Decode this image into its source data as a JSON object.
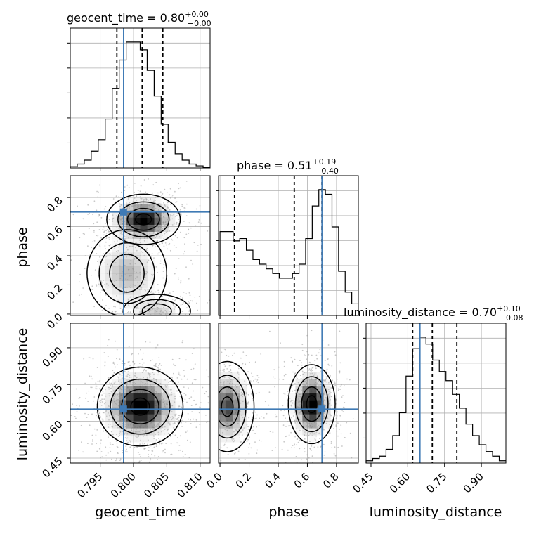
{
  "chart_data": {
    "type": "corner",
    "parameters": [
      "geocent_time",
      "phase",
      "luminosity_distance"
    ],
    "truths": [
      0.7985,
      0.7,
      0.65
    ],
    "truth_color": "#3f7ab5",
    "grid": true,
    "titles": [
      {
        "param": "geocent_time",
        "label": "geocent_time",
        "median": "0.80",
        "plus": "+0.00",
        "minus": "−0.00"
      },
      {
        "param": "phase",
        "label": "phase",
        "median": "0.51",
        "plus": "+0.19",
        "minus": "−0.40"
      },
      {
        "param": "luminosity_distance",
        "label": "luminosity_distance",
        "median": "0.70",
        "plus": "+0.10",
        "minus": "−0.08"
      }
    ],
    "axes": {
      "geocent_time": {
        "range": [
          0.7905,
          0.8115
        ],
        "ticks": [
          0.795,
          0.8,
          0.805,
          0.81
        ],
        "tick_labels": [
          "0.795",
          "0.800",
          "0.805",
          "0.810"
        ]
      },
      "phase": {
        "range": [
          -0.01,
          0.95
        ],
        "ticks": [
          0.0,
          0.2,
          0.4,
          0.6,
          0.8
        ],
        "tick_labels": [
          "0.0",
          "0.2",
          "0.4",
          "0.6",
          "0.8"
        ],
        "y_ticks": [
          0.0,
          0.2,
          0.4,
          0.6,
          0.8
        ],
        "y_tick_labels": [
          "0.0",
          "0.2",
          "0.4",
          "0.6",
          "0.8"
        ]
      },
      "luminosity_distance": {
        "range": [
          0.43,
          1.0
        ],
        "ticks": [
          0.45,
          0.6,
          0.75,
          0.9
        ],
        "tick_labels": [
          "0.45",
          "0.60",
          "0.75",
          "0.90"
        ]
      }
    },
    "histograms": [
      {
        "param": "geocent_time",
        "bin_range": [
          0.7905,
          0.8115
        ],
        "counts": [
          0.5,
          1.5,
          3,
          6.5,
          11,
          19,
          31,
          42,
          49,
          49,
          46,
          38,
          28,
          17,
          10,
          5.5,
          3,
          1.5,
          0.8,
          0.3
        ],
        "quantiles": [
          0.7975,
          0.8013,
          0.8044
        ]
      },
      {
        "param": "phase",
        "bin_range": [
          0.0,
          0.95
        ],
        "counts": [
          36,
          36,
          32,
          33,
          28,
          24,
          22,
          20,
          18,
          16,
          16,
          18,
          22,
          33,
          47,
          54,
          52,
          38,
          19,
          10,
          5
        ],
        "quantiles": [
          0.1,
          0.51,
          0.7
        ]
      },
      {
        "param": "luminosity_distance",
        "bin_range": [
          0.43,
          1.0
        ],
        "counts": [
          1,
          2,
          3,
          6,
          12,
          22,
          38,
          50,
          55,
          52,
          45,
          40,
          36,
          30,
          24,
          17,
          12,
          8,
          5,
          3,
          1
        ],
        "quantiles": [
          0.62,
          0.7,
          0.8
        ]
      }
    ],
    "pairs": [
      {
        "x": "geocent_time",
        "y": "phase",
        "modes": [
          {
            "x": 0.8015,
            "y": 0.65,
            "sx": 0.0024,
            "sy": 0.075,
            "w": 1.0
          },
          {
            "x": 0.799,
            "y": 0.28,
            "sx": 0.0026,
            "sy": 0.13,
            "w": 0.45
          },
          {
            "x": 0.8035,
            "y": 0.02,
            "sx": 0.0022,
            "sy": 0.05,
            "w": 0.35
          }
        ]
      },
      {
        "x": "geocent_time",
        "y": "luminosity_distance",
        "modes": [
          {
            "x": 0.801,
            "y": 0.66,
            "sx": 0.0028,
            "sy": 0.07,
            "w": 1.0
          }
        ]
      },
      {
        "x": "phase",
        "y": "luminosity_distance",
        "modes": [
          {
            "x": 0.63,
            "y": 0.67,
            "sx": 0.07,
            "sy": 0.07,
            "w": 1.0
          },
          {
            "x": 0.05,
            "y": 0.66,
            "sx": 0.08,
            "sy": 0.08,
            "w": 0.75
          }
        ]
      }
    ]
  }
}
